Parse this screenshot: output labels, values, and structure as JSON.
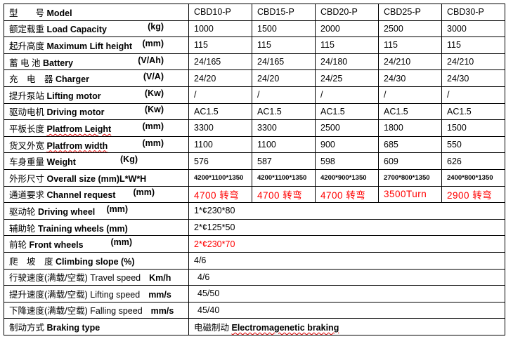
{
  "models": [
    "CBD10-P",
    "CBD15-P",
    "CBD20-P",
    "CBD25-P",
    "CBD30-P"
  ],
  "rows": [
    {
      "cn": "型　　号",
      "en": "Model",
      "unit": ""
    },
    {
      "cn": "额定载重",
      "en": "Load Capacity",
      "unit": "(kg)",
      "values": [
        "1000",
        "1500",
        "2000",
        "2500",
        "3000"
      ]
    },
    {
      "cn": "起升高度",
      "en": "Maximum Lift height",
      "unit": "(mm)",
      "values": [
        "115",
        "115",
        "115",
        "115",
        "115"
      ]
    },
    {
      "cn": "蓄 电 池",
      "en": "Battery",
      "unit": "(V/Ah)",
      "values": [
        "24/165",
        "24/165",
        "24/180",
        "24/210",
        "24/210"
      ]
    },
    {
      "cn": "充　电　器",
      "en": "Charger",
      "unit": "(V/A)",
      "values": [
        "24/20",
        "24/20",
        "24/25",
        "24/30",
        "24/30"
      ]
    },
    {
      "cn": "提升泵站",
      "en": "Lifting motor",
      "unit": "(Kw)",
      "values": [
        "/",
        "/",
        "/",
        "/",
        "/"
      ]
    },
    {
      "cn": "驱动电机",
      "en": "Driving motor",
      "unit": "(Kw)",
      "values": [
        "AC1.5",
        "AC1.5",
        "AC1.5",
        "AC1.5",
        "AC1.5"
      ]
    },
    {
      "cn": "平板长度",
      "en": "Platfrom Leight",
      "unit": "(mm)",
      "values": [
        "3300",
        "3300",
        "2500",
        "1800",
        "1500"
      ]
    },
    {
      "cn": "货叉外宽",
      "en": "Platfrom width",
      "unit": "(mm)",
      "values": [
        "1100",
        "1100",
        "900",
        "685",
        "550"
      ]
    },
    {
      "cn": "车身重量",
      "en": "Weight",
      "unit": "(Kg)",
      "values": [
        "576",
        "587",
        "598",
        "609",
        "626"
      ]
    },
    {
      "cn": "外形尺寸",
      "en": "Overall size (mm)L*W*H",
      "unit": "",
      "values": [
        "4200*1100*1350",
        "4200*1100*1350",
        "4200*900*1350",
        "2700*800*1350",
        "2400*800*1350"
      ]
    },
    {
      "cn": "通道要求",
      "en": "Channel request",
      "unit": "(mm)",
      "values": [
        "4700 转弯",
        "4700 转弯",
        "4700 转弯",
        "3500Turn",
        "2900 转弯"
      ]
    },
    {
      "cn": "驱动轮",
      "en": "Driving wheel",
      "unit": "(mm)",
      "value": "1*¢230*80"
    },
    {
      "cn": "辅助轮",
      "en": "Training wheels (mm)",
      "unit": "",
      "value": "2*¢125*50"
    },
    {
      "cn": "前轮",
      "en": "Front wheels",
      "unit": "(mm)",
      "value": "2*¢230*70"
    },
    {
      "cn": "爬　坡　度",
      "en": "Climbing slope (%)",
      "unit": "",
      "value": "4/6"
    },
    {
      "cn": "行驶速度(满载/空载)",
      "en": "Travel speed",
      "unit": "Km/h",
      "value": "4/6"
    },
    {
      "cn": "提升速度(满载/空载)",
      "en": " Lifting speed",
      "unit": "mm/s",
      "value": "45/50"
    },
    {
      "cn": "下降速度(满载/空载)",
      "en": "Falling speed",
      "unit": "mm/s",
      "value": "45/40"
    },
    {
      "cn": "制动方式",
      "en": "Braking type",
      "unit": "",
      "value_cn": "电磁制动",
      "value_en": "Electromagenetic braking"
    }
  ],
  "colors": {
    "highlight": "#ff0000",
    "border": "#000000"
  }
}
